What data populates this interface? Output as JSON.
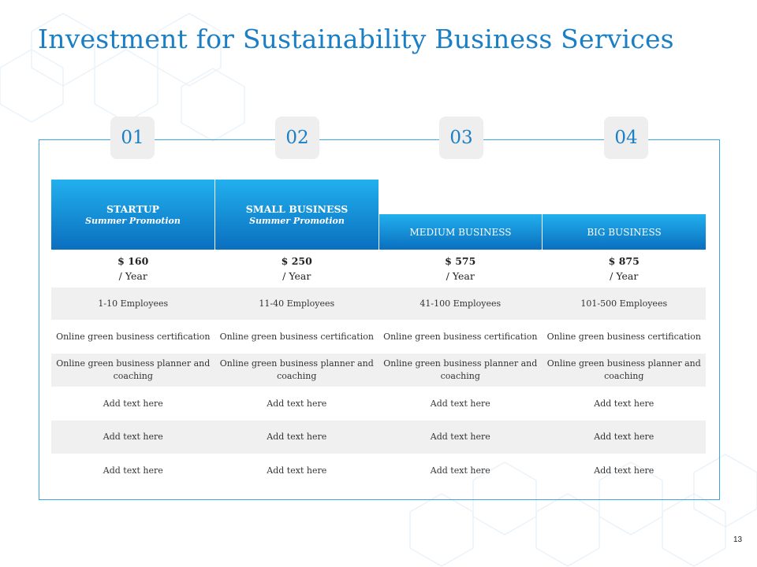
{
  "title": "Investment for Sustainability Business Services",
  "steps": [
    "01",
    "02",
    "03",
    "04"
  ],
  "plans": [
    {
      "name": "STARTUP",
      "subtitle": "Summer Promotion",
      "price": "$ 160",
      "period": "/ Year"
    },
    {
      "name": "SMALL BUSINESS",
      "subtitle": "Summer Promotion",
      "price": "$ 250",
      "period": "/ Year"
    },
    {
      "name": "MEDIUM BUSINESS",
      "subtitle": "",
      "price": "$ 575",
      "period": "/ Year"
    },
    {
      "name": "BIG BUSINESS",
      "subtitle": "",
      "price": "$ 875",
      "period": "/ Year"
    }
  ],
  "rows": [
    [
      "1-10 Employees",
      "11-40 Employees",
      "41-100 Employees",
      "101-500 Employees"
    ],
    [
      "Online green  business certification",
      "Online green  business certification",
      "Online green  business certification",
      "Online green  business certification"
    ],
    [
      "Online green  business planner and coaching",
      "Online green  business planner and coaching",
      "Online green  business planner and coaching",
      "Online green  business planner and coaching"
    ],
    [
      "Add text here",
      "Add text here",
      "Add text here",
      "Add text here"
    ],
    [
      "Add text here",
      "Add text here",
      "Add text here",
      "Add text here"
    ],
    [
      "Add text here",
      "Add text here",
      "Add text here",
      "Add text here"
    ]
  ],
  "page_number": "13",
  "colors": {
    "accent": "#1a7fc4",
    "header_top": "#22b0ee",
    "header_bottom": "#0a6fbf",
    "row_grey": "#f0f0f0"
  }
}
